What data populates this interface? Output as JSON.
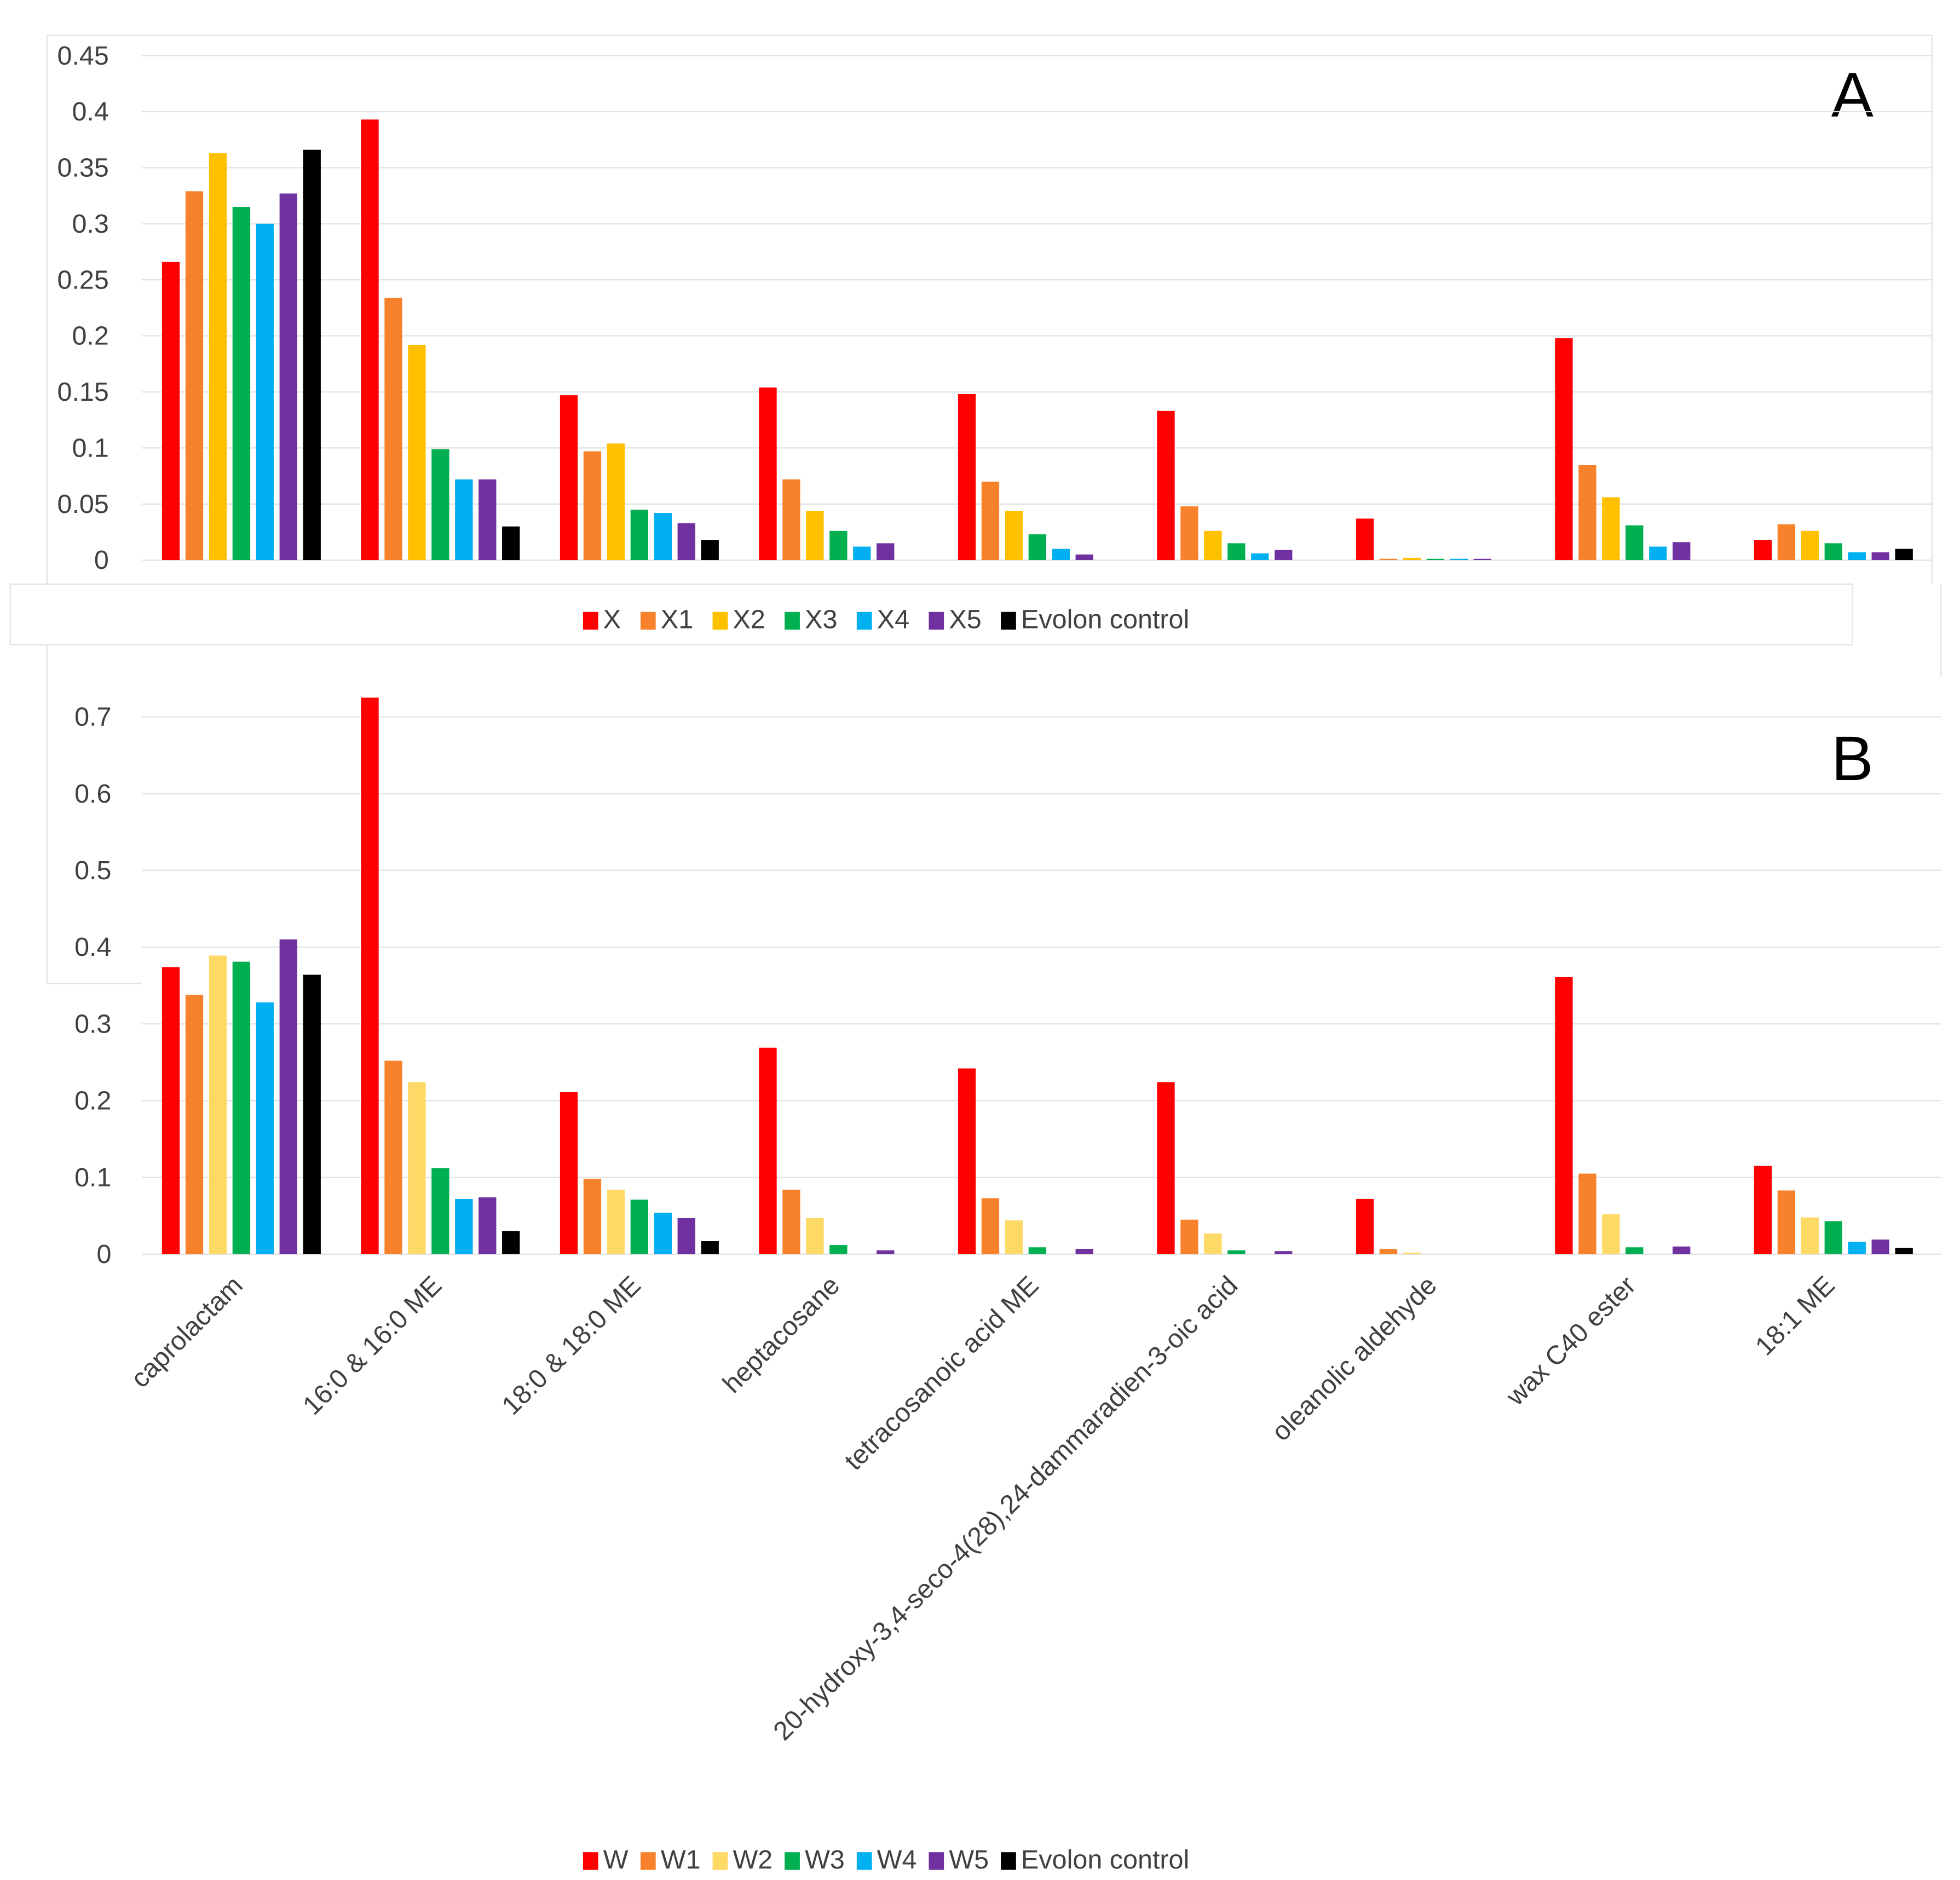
{
  "chart_data": [
    {
      "type": "bar",
      "panel_label": "A",
      "categories": [
        "caprolactam",
        "16:0 & 16:0 ME",
        "18:0 & 18:0 ME",
        "heptacosane",
        "tetracosanoic acid ME",
        "20-hydroxy-3,4-seco-4(28),24-dammaradien-3-oic acid",
        "oleanolic aldehyde",
        "wax C40 ester",
        "18:1 ME"
      ],
      "ylim": [
        0,
        0.45
      ],
      "yticks": [
        "0",
        "0.05",
        "0.1",
        "0.15",
        "0.2",
        "0.25",
        "0.3",
        "0.35",
        "0.4",
        "0.45"
      ],
      "grid": true,
      "legend": "bottom",
      "series": [
        {
          "name": "X",
          "color": "#FF0000",
          "values": [
            0.266,
            0.393,
            0.147,
            0.154,
            0.148,
            0.133,
            0.037,
            0.198,
            0.018
          ]
        },
        {
          "name": "X1",
          "color": "#F7822B",
          "values": [
            0.329,
            0.234,
            0.097,
            0.072,
            0.07,
            0.048,
            0.001,
            0.085,
            0.032
          ]
        },
        {
          "name": "X2",
          "color": "#FFC000",
          "values": [
            0.363,
            0.192,
            0.104,
            0.044,
            0.044,
            0.026,
            0.002,
            0.056,
            0.026
          ]
        },
        {
          "name": "X3",
          "color": "#00B050",
          "values": [
            0.315,
            0.099,
            0.045,
            0.026,
            0.023,
            0.015,
            0.001,
            0.031,
            0.015
          ]
        },
        {
          "name": "X4",
          "color": "#00B0F0",
          "values": [
            0.3,
            0.072,
            0.042,
            0.012,
            0.01,
            0.006,
            0.001,
            0.012,
            0.007
          ]
        },
        {
          "name": "X5",
          "color": "#7030A0",
          "values": [
            0.327,
            0.072,
            0.033,
            0.015,
            0.005,
            0.009,
            0.001,
            0.016,
            0.007
          ]
        },
        {
          "name": "Evolon control",
          "color": "#000000",
          "values": [
            0.366,
            0.03,
            0.018,
            0,
            0,
            0,
            0,
            0,
            0.01
          ]
        }
      ]
    },
    {
      "type": "bar",
      "panel_label": "B",
      "categories": [
        "caprolactam",
        "16:0 & 16:0 ME",
        "18:0 & 18:0 ME",
        "heptacosane",
        "tetracosanoic acid ME",
        "20-hydroxy-3,4-seco-4(28),24-dammaradien-3-oic acid",
        "oleanolic aldehyde",
        "wax C40 ester",
        "18:1 ME"
      ],
      "ylim": [
        0,
        0.7
      ],
      "yticks": [
        "0",
        "0.1",
        "0.2",
        "0.3",
        "0.4",
        "0.5",
        "0.6",
        "0.7"
      ],
      "grid": true,
      "legend": "bottom",
      "series": [
        {
          "name": "W",
          "color": "#FF0000",
          "values": [
            0.374,
            0.725,
            0.211,
            0.269,
            0.242,
            0.224,
            0.072,
            0.361,
            0.115
          ]
        },
        {
          "name": "W1",
          "color": "#F7822B",
          "values": [
            0.338,
            0.252,
            0.098,
            0.084,
            0.073,
            0.045,
            0.007,
            0.105,
            0.083
          ]
        },
        {
          "name": "W2",
          "color": "#FFD966",
          "values": [
            0.389,
            0.224,
            0.084,
            0.047,
            0.044,
            0.027,
            0.002,
            0.052,
            0.048
          ]
        },
        {
          "name": "W3",
          "color": "#00B050",
          "values": [
            0.381,
            0.112,
            0.071,
            0.012,
            0.009,
            0.005,
            0,
            0.009,
            0.043
          ]
        },
        {
          "name": "W4",
          "color": "#00B0F0",
          "values": [
            0.328,
            0.072,
            0.054,
            0,
            0,
            0,
            0,
            0,
            0.016
          ]
        },
        {
          "name": "W5",
          "color": "#7030A0",
          "values": [
            0.41,
            0.074,
            0.047,
            0.005,
            0.007,
            0.004,
            0,
            0.01,
            0.019
          ]
        },
        {
          "name": "Evolon control",
          "color": "#000000",
          "values": [
            0.364,
            0.03,
            0.017,
            0,
            0,
            0,
            0,
            0,
            0.008
          ]
        }
      ]
    }
  ]
}
